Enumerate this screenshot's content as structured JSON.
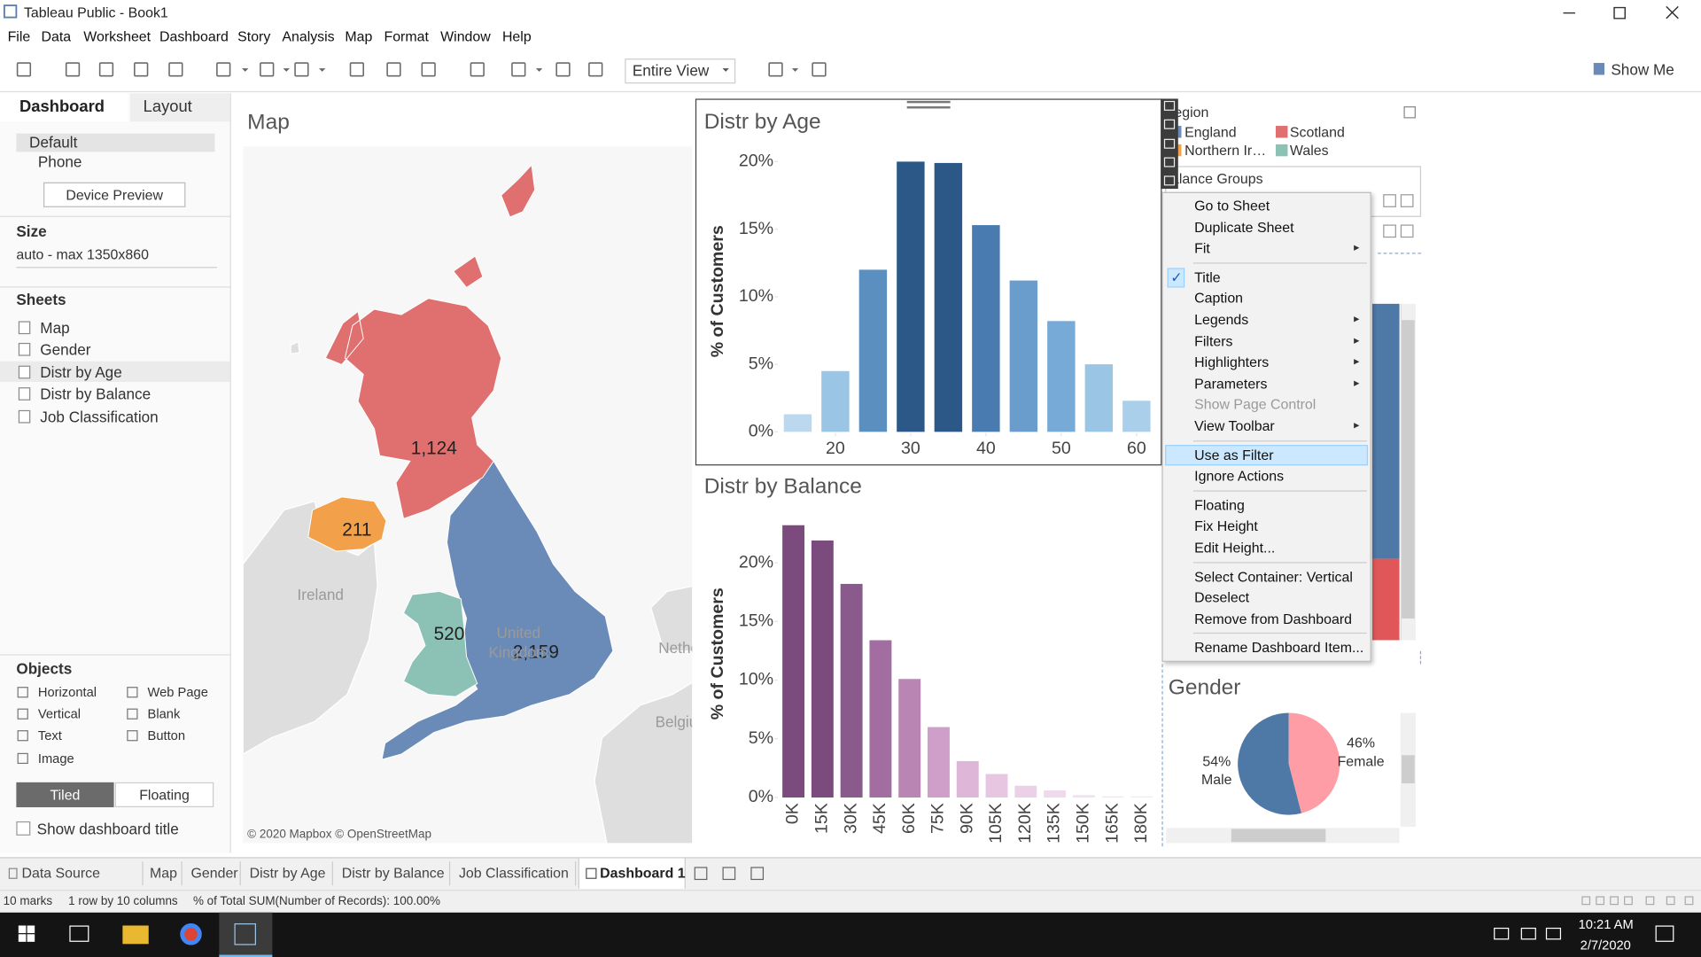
{
  "window": {
    "title": "Tableau Public - Book1"
  },
  "menu": [
    "File",
    "Data",
    "Worksheet",
    "Dashboard",
    "Story",
    "Analysis",
    "Map",
    "Format",
    "Window",
    "Help"
  ],
  "toolbar": {
    "fit": "Entire View",
    "show_me": "Show Me"
  },
  "side_panel": {
    "tabs": [
      "Dashboard",
      "Layout"
    ],
    "devices": [
      "Default",
      "Phone"
    ],
    "device_preview": "Device Preview",
    "size": {
      "heading": "Size",
      "value": "auto - max 1350x860"
    },
    "sheets": {
      "heading": "Sheets",
      "items": [
        "Map",
        "Gender",
        "Distr by Age",
        "Distr by Balance",
        "Job Classification"
      ]
    },
    "objects": {
      "heading": "Objects",
      "items": [
        "Horizontal",
        "Web Page",
        "Vertical",
        "Blank",
        "Text",
        "Button",
        "Image"
      ]
    },
    "layout_modes": [
      "Tiled",
      "Floating"
    ],
    "show_title": "Show dashboard title"
  },
  "map_labels": {
    "places": [
      "Ireland",
      "United Kingdom",
      "Netherlands",
      "Belgium"
    ],
    "attribution": "© 2020 Mapbox © OpenStreetMap"
  },
  "chart_data": [
    {
      "type": "map",
      "title": "Map",
      "legend_title": "Region",
      "categories": [
        "England",
        "Northern Ireland",
        "Scotland",
        "Wales"
      ],
      "values": [
        2159,
        211,
        1124,
        520
      ],
      "value_labels": [
        "2,159",
        "211",
        "1,124",
        "520"
      ],
      "colors": [
        "#6a8bb8",
        "#f2a04a",
        "#e07070",
        "#8cc2b5"
      ]
    },
    {
      "type": "bar",
      "title": "Distr by Age",
      "y_label": "% of Customers",
      "x": [
        15,
        20,
        25,
        30,
        35,
        40,
        45,
        50,
        55,
        60
      ],
      "values": [
        1.3,
        4.5,
        12.0,
        20.0,
        19.9,
        15.3,
        11.2,
        8.2,
        5.0,
        2.3
      ],
      "colors": [
        "#bcd8ee",
        "#9ac5e5",
        "#5b8fc0",
        "#2b5886",
        "#2b5886",
        "#4a7bb0",
        "#6b9dcc",
        "#78aad7",
        "#9ac5e5",
        "#a9cfeb"
      ],
      "xlim": [
        12.5,
        62.5
      ],
      "xticks": [
        20,
        30,
        40,
        50,
        60
      ],
      "ylim": [
        0,
        20.8
      ],
      "yticks": [
        {
          "value": 0,
          "label": "0%"
        },
        {
          "value": 5,
          "label": "5%"
        },
        {
          "value": 10,
          "label": "10%"
        },
        {
          "value": 15,
          "label": "15%"
        },
        {
          "value": 20,
          "label": "20%"
        }
      ]
    },
    {
      "type": "bar",
      "title": "Distr by Balance",
      "y_label": "% of Customers",
      "categories": [
        "0K",
        "15K",
        "30K",
        "45K",
        "60K",
        "75K",
        "90K",
        "105K",
        "120K",
        "135K",
        "150K",
        "165K",
        "180K"
      ],
      "values": [
        23.2,
        21.9,
        18.2,
        13.4,
        10.1,
        6.0,
        3.1,
        2.0,
        1.0,
        0.6,
        0.2,
        0.1,
        0.1
      ],
      "colors": [
        "#7a4b7c",
        "#7a4b7c",
        "#8b5a8d",
        "#a26da1",
        "#b985b3",
        "#d09fc9",
        "#deb7d8",
        "#e6c6e1",
        "#ebd1e7",
        "#efd9ec",
        "#f2e0ef",
        "#f4e5f1",
        "#f5e8f3"
      ],
      "ylim": [
        0,
        24.5
      ],
      "yticks": [
        {
          "value": 0,
          "label": "0%"
        },
        {
          "value": 5,
          "label": "5%"
        },
        {
          "value": 10,
          "label": "10%"
        },
        {
          "value": 15,
          "label": "15%"
        },
        {
          "value": 20,
          "label": "20%"
        }
      ]
    },
    {
      "type": "pie",
      "title": "Gender",
      "categories": [
        "Male",
        "Female"
      ],
      "values": [
        54,
        46
      ],
      "value_labels": [
        "54%",
        "46%"
      ],
      "colors": [
        "#4e79a7",
        "#ff9da7"
      ]
    }
  ],
  "filter_card": {
    "title": "Balance Groups"
  },
  "context_menu": {
    "groups": [
      [
        {
          "label": "Go to Sheet"
        },
        {
          "label": "Duplicate Sheet"
        },
        {
          "label": "Fit",
          "submenu": true
        }
      ],
      [
        {
          "label": "Title",
          "checked": true
        },
        {
          "label": "Caption"
        },
        {
          "label": "Legends",
          "submenu": true
        },
        {
          "label": "Filters",
          "submenu": true
        },
        {
          "label": "Highlighters",
          "submenu": true
        },
        {
          "label": "Parameters",
          "submenu": true
        },
        {
          "label": "Show Page Control",
          "disabled": true
        },
        {
          "label": "View Toolbar",
          "submenu": true
        }
      ],
      [
        {
          "label": "Use as Filter",
          "highlighted": true
        },
        {
          "label": "Ignore Actions"
        }
      ],
      [
        {
          "label": "Floating"
        },
        {
          "label": "Fix Height"
        },
        {
          "label": "Edit Height..."
        }
      ],
      [
        {
          "label": "Select Container: Vertical"
        },
        {
          "label": "Deselect"
        },
        {
          "label": "Remove from Dashboard"
        }
      ],
      [
        {
          "label": "Rename Dashboard Item..."
        }
      ]
    ]
  },
  "sheet_tabs": {
    "items": [
      "Data Source",
      "Map",
      "Gender",
      "Distr by Age",
      "Distr by Balance",
      "Job Classification"
    ],
    "current": "Dashboard 1"
  },
  "status": [
    "10 marks",
    "1 row by 10 columns",
    "% of Total SUM(Number of Records): 100.00%"
  ],
  "clock": {
    "time": "10:21 AM",
    "date": "2/7/2020"
  }
}
